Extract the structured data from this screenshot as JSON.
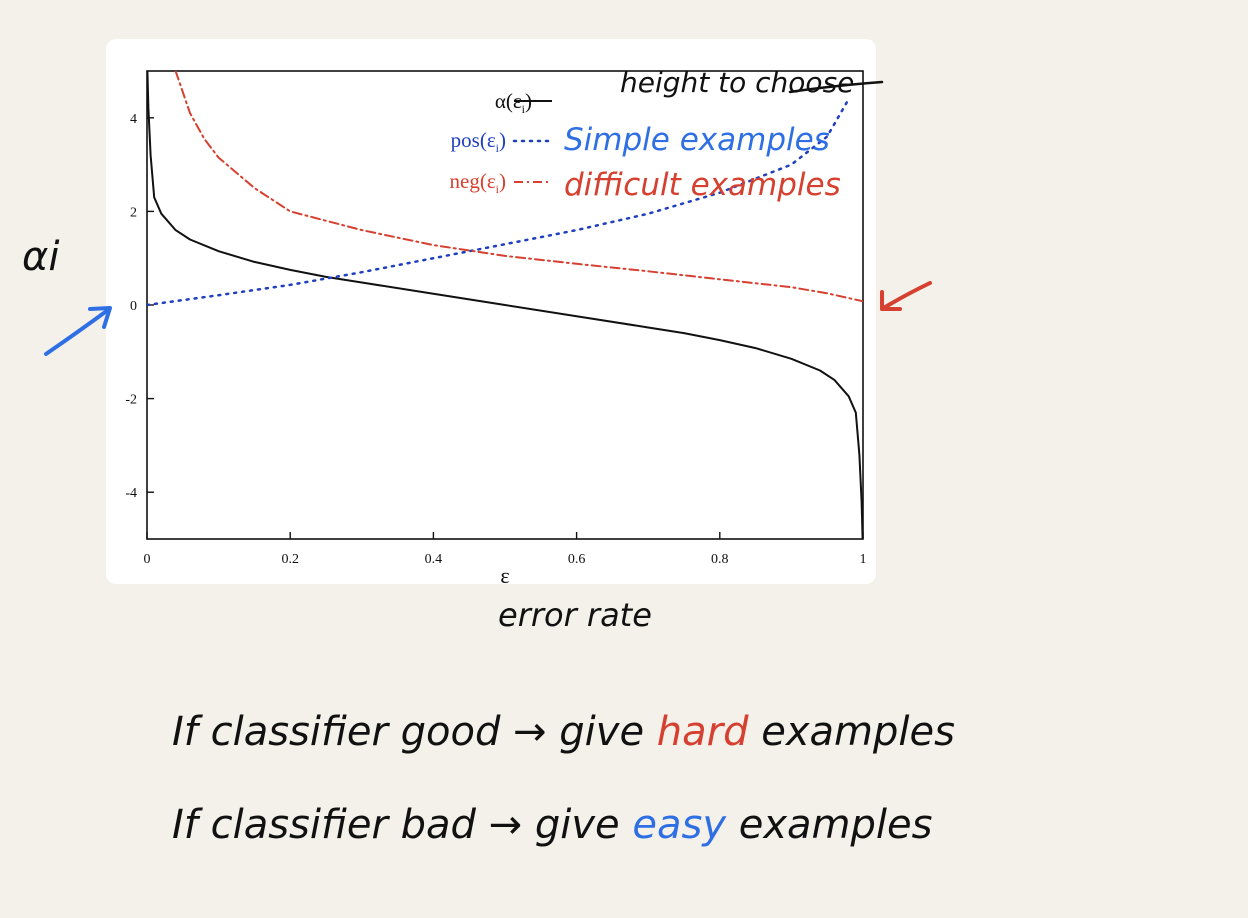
{
  "chart_data": {
    "type": "line",
    "xlabel": "ε",
    "x_ticks": [
      "0",
      "0.2",
      "0.4",
      "0.6",
      "0.8",
      "1"
    ],
    "y_ticks": [
      "4",
      "2",
      "0",
      "-2",
      "-4"
    ],
    "xlim": [
      0,
      1
    ],
    "ylim": [
      -5,
      5
    ],
    "legend_position": "top-center",
    "legend": [
      {
        "label": "α(ε",
        "subscript": "i",
        "close": ")",
        "style": "solid"
      },
      {
        "label": "pos(ε",
        "subscript": "i",
        "close": ")",
        "style": "dotted"
      },
      {
        "label": "neg(ε",
        "subscript": "i",
        "close": ")",
        "style": "dash-dot"
      }
    ],
    "series": [
      {
        "color": "#111111",
        "style": "solid",
        "x": [
          0.0005,
          0.002,
          0.005,
          0.01,
          0.02,
          0.04,
          0.06,
          0.1,
          0.15,
          0.2,
          0.25,
          0.3,
          0.4,
          0.5,
          0.6,
          0.7,
          0.75,
          0.8,
          0.85,
          0.9,
          0.94,
          0.96,
          0.98,
          0.99,
          0.995,
          0.998,
          0.9995
        ],
        "y": [
          5.0,
          4.2,
          3.2,
          2.3,
          1.95,
          1.6,
          1.4,
          1.15,
          0.92,
          0.75,
          0.6,
          0.48,
          0.24,
          0.0,
          -0.24,
          -0.48,
          -0.6,
          -0.75,
          -0.92,
          -1.15,
          -1.4,
          -1.6,
          -1.95,
          -2.3,
          -3.2,
          -4.2,
          -5.0
        ]
      },
      {
        "color": "#1f3fbf",
        "style": "dotted",
        "x": [
          0.0,
          0.1,
          0.2,
          0.3,
          0.4,
          0.5,
          0.6,
          0.7,
          0.8,
          0.9,
          0.95,
          0.98
        ],
        "y": [
          0.0,
          0.21,
          0.43,
          0.7,
          1.0,
          1.3,
          1.6,
          1.95,
          2.4,
          3.0,
          3.6,
          4.4
        ]
      },
      {
        "color": "#d64030",
        "style": "dash-dot",
        "x": [
          0.04,
          0.06,
          0.08,
          0.1,
          0.15,
          0.2,
          0.3,
          0.4,
          0.5,
          0.6,
          0.7,
          0.8,
          0.9,
          0.95,
          1.0
        ],
        "y": [
          5.0,
          4.1,
          3.55,
          3.15,
          2.5,
          2.0,
          1.6,
          1.28,
          1.05,
          0.88,
          0.72,
          0.55,
          0.38,
          0.25,
          0.08
        ]
      }
    ]
  },
  "annotations": {
    "weight_label": "height to choose",
    "alpha_axis_label": "αi",
    "error_rate_label": "error rate",
    "pos_note": "Simple examples",
    "neg_note": "difficult examples",
    "arrow_left_color": "#2f6fe4",
    "arrow_right_color": "#d64030"
  },
  "notes": {
    "line1": {
      "prefix": "If classifier good → give ",
      "highlight": "hard",
      "highlight_color": "#d64030",
      "suffix": " examples"
    },
    "line2": {
      "prefix": "If classifier bad → give ",
      "highlight": "easy",
      "highlight_color": "#2f6fe4",
      "suffix": " examples"
    }
  }
}
